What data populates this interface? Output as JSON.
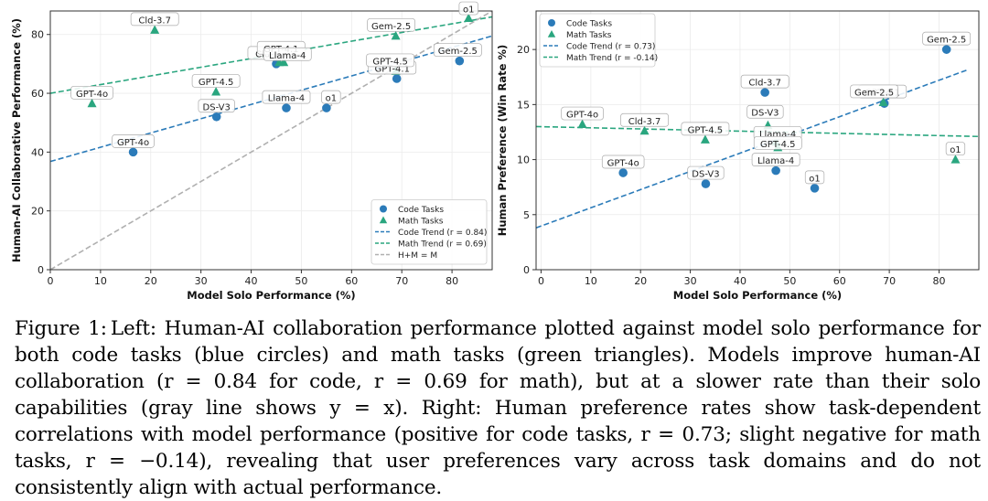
{
  "chart_data": [
    {
      "type": "scatter",
      "xlabel": "Model Solo Performance (%)",
      "ylabel": "Human-AI Collaborative Performance (%)",
      "xlim": [
        0,
        88
      ],
      "ylim": [
        0,
        88
      ],
      "xticks": [
        0,
        10,
        20,
        30,
        40,
        50,
        60,
        70,
        80
      ],
      "yticks": [
        0,
        20,
        40,
        60,
        80
      ],
      "grid": true,
      "legend_position": "lower-right",
      "series": [
        {
          "name": "Code Tasks",
          "marker": "circle",
          "color": "#2b7bb9",
          "points": [
            {
              "label": "GPT-4o",
              "x": 16.5,
              "y": 40
            },
            {
              "label": "DS-V3",
              "x": 33.1,
              "y": 52
            },
            {
              "label": "Cld-3.7",
              "x": 45,
              "y": 70
            },
            {
              "label": "Llama-4",
              "x": 47,
              "y": 55
            },
            {
              "label": "o1",
              "x": 55,
              "y": 55
            },
            {
              "label": "GPT-4.1",
              "x": 69,
              "y": 65
            },
            {
              "label": "Gem-2.5",
              "x": 81.5,
              "y": 71
            }
          ]
        },
        {
          "name": "Math Tasks",
          "marker": "triangle",
          "color": "#2aa67f",
          "points": [
            {
              "label": "GPT-4o",
              "x": 8.3,
              "y": 56.5
            },
            {
              "label": "Cld-3.7",
              "x": 20.8,
              "y": 81.5
            },
            {
              "label": "GPT-4.5",
              "x": 33,
              "y": 60.5
            },
            {
              "label": "GPT-4.1",
              "x": 45.6,
              "y": 70.5
            },
            {
              "label": "Llama-4",
              "x": 46.5,
              "y": 70.5
            },
            {
              "label": "GPT-4.5",
              "x": 68.8,
              "y": 67.5
            },
            {
              "label": "Gem-2.5",
              "x": 68.8,
              "y": 79.5
            },
            {
              "label": "o1",
              "x": 83.3,
              "y": 85.5
            }
          ]
        }
      ],
      "trend_lines": [
        {
          "name": "Code Trend (r = 0.84)",
          "color": "#2b7bb9",
          "style": "dashed",
          "from": [
            0,
            36.8
          ],
          "to": [
            88,
            79.5
          ]
        },
        {
          "name": "Math Trend (r = 0.69)",
          "color": "#2aa67f",
          "style": "dashed",
          "from": [
            0,
            60
          ],
          "to": [
            88,
            86
          ]
        },
        {
          "name": "H+M = M",
          "color": "#b0b0b0",
          "style": "dashed",
          "from": [
            0,
            0
          ],
          "to": [
            88,
            88
          ]
        }
      ]
    },
    {
      "type": "scatter",
      "xlabel": "Model Solo Performance (%)",
      "ylabel": "Human Preference (Win Rate %)",
      "xlim": [
        -1,
        88
      ],
      "ylim": [
        0,
        23.5
      ],
      "xticks": [
        0,
        10,
        20,
        30,
        40,
        50,
        60,
        70,
        80
      ],
      "yticks": [
        0,
        5,
        10,
        15,
        20
      ],
      "grid": true,
      "legend_position": "top-left",
      "series": [
        {
          "name": "Code Tasks",
          "marker": "circle",
          "color": "#2b7bb9",
          "points": [
            {
              "label": "GPT-4o",
              "x": 16.5,
              "y": 8.8
            },
            {
              "label": "DS-V3",
              "x": 33.1,
              "y": 7.8
            },
            {
              "label": "Cld-3.7",
              "x": 45,
              "y": 16.1
            },
            {
              "label": "Llama-4",
              "x": 47.2,
              "y": 9
            },
            {
              "label": "o1",
              "x": 55,
              "y": 7.4
            },
            {
              "label": "GPT-4.1",
              "x": 69,
              "y": 15.1
            },
            {
              "label": "Gem-2.5",
              "x": 81.5,
              "y": 20
            }
          ]
        },
        {
          "name": "Math Tasks",
          "marker": "triangle",
          "color": "#2aa67f",
          "points": [
            {
              "label": "GPT-4o",
              "x": 8.3,
              "y": 13.2
            },
            {
              "label": "Cld-3.7",
              "x": 20.8,
              "y": 12.6
            },
            {
              "label": "GPT-4.5",
              "x": 33,
              "y": 11.8
            },
            {
              "label": "DS-V3",
              "x": 45.6,
              "y": 13.1
            },
            {
              "label": "Llama-4",
              "x": 47.2,
              "y": 11.6
            },
            {
              "label": "GPT-4.5",
              "x": 47.6,
              "y": 11.1
            },
            {
              "label": "Gem-2.5",
              "x": 68.8,
              "y": 15.2
            },
            {
              "label": "o1",
              "x": 83.3,
              "y": 10
            }
          ]
        }
      ],
      "trend_lines": [
        {
          "name": "Code Trend (r = 0.73)",
          "color": "#2b7bb9",
          "style": "dashed",
          "from": [
            -1,
            3.8
          ],
          "to": [
            86,
            18.2
          ]
        },
        {
          "name": "Math Trend (r = -0.14)",
          "color": "#2aa67f",
          "style": "dashed",
          "from": [
            -1,
            13
          ],
          "to": [
            88,
            12.1
          ]
        }
      ]
    }
  ],
  "caption": {
    "lead": "Figure 1:",
    "body": "Left: Human-AI collaboration performance plotted against model solo performance for both code tasks (blue circles) and math tasks (green triangles). Models improve human-AI collaboration (r = 0.84 for code, r = 0.69 for math), but at a slower rate than their solo capabilities (gray line shows y = x). Right: Human preference rates show task-dependent correlations with model performance (positive for code tasks, r = 0.73; slight negative for math tasks, r = −0.14), revealing that user preferences vary across task domains and do not consistently align with actual performance."
  }
}
